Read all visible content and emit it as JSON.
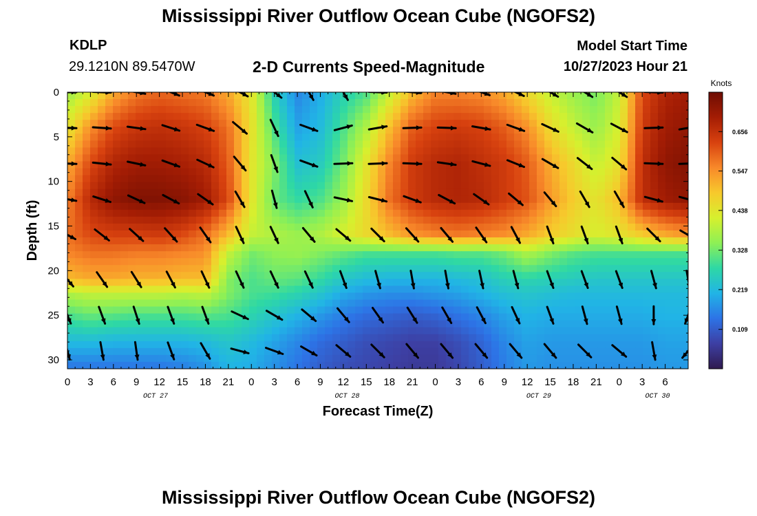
{
  "title": "Mississippi River Outflow Ocean Cube (NGOFS2)",
  "bottom_title": "Mississippi River Outflow Ocean Cube (NGOFS2)",
  "station": {
    "id": "KDLP",
    "coords": "29.1210N  89.5470W"
  },
  "model_start": {
    "label": "Model Start Time",
    "value": "10/27/2023 Hour 21"
  },
  "colors": {
    "ramp": [
      "#2f1a4f",
      "#3d3fa3",
      "#2d73e6",
      "#21b4e6",
      "#2ed8a5",
      "#8ef055",
      "#d6f02e",
      "#f7c92c",
      "#f8892a",
      "#d8420f",
      "#a41d04",
      "#6e0d02"
    ],
    "arrow": "#000000"
  },
  "chart_data": {
    "type": "heatmap",
    "title": "2-D Currents Speed-Magnitude",
    "xlabel": "Forecast Time(Z)",
    "ylabel": "Depth (ft)",
    "x_range_hours": [
      0,
      81
    ],
    "y_range": [
      0,
      31
    ],
    "y_inverted": true,
    "x_tick_labels": [
      "0",
      "3",
      "6",
      "9",
      "12",
      "15",
      "18",
      "21",
      "0",
      "3",
      "6",
      "9",
      "12",
      "15",
      "18",
      "21",
      "0",
      "3",
      "6",
      "9",
      "12",
      "15",
      "18",
      "21",
      "0",
      "3",
      "6"
    ],
    "x_tick_step_hours": 3,
    "y_ticks": [
      0,
      5,
      10,
      15,
      20,
      25,
      30
    ],
    "date_labels": [
      {
        "label": "OCT 27",
        "hour": 11.5
      },
      {
        "label": "OCT 28",
        "hour": 36.5
      },
      {
        "label": "OCT 29",
        "hour": 61.5
      },
      {
        "label": "OCT 30",
        "hour": 77
      }
    ],
    "colorbar": {
      "title": "Knots",
      "range": [
        0.0,
        0.765
      ],
      "ticks": [
        0.109,
        0.219,
        0.328,
        0.438,
        0.547,
        0.656
      ]
    },
    "speed_field": {
      "hours": [
        0,
        3,
        6,
        9,
        12,
        15,
        18,
        21,
        24,
        27,
        30,
        33,
        36,
        39,
        42,
        45,
        48,
        51,
        54,
        57,
        60,
        63,
        66,
        69,
        72,
        75,
        78,
        81
      ],
      "depths": [
        0,
        4,
        8,
        12,
        16,
        18,
        21,
        22.5,
        25,
        28,
        31
      ],
      "values": [
        [
          0.36,
          0.42,
          0.52,
          0.57,
          0.59,
          0.58,
          0.57,
          0.52,
          0.44,
          0.26,
          0.16,
          0.2,
          0.26,
          0.3,
          0.4,
          0.5,
          0.56,
          0.56,
          0.55,
          0.52,
          0.46,
          0.4,
          0.36,
          0.33,
          0.4,
          0.62,
          0.68,
          0.7
        ],
        [
          0.44,
          0.55,
          0.62,
          0.65,
          0.66,
          0.65,
          0.63,
          0.58,
          0.45,
          0.3,
          0.19,
          0.22,
          0.3,
          0.38,
          0.5,
          0.6,
          0.63,
          0.64,
          0.63,
          0.6,
          0.55,
          0.46,
          0.4,
          0.36,
          0.42,
          0.64,
          0.7,
          0.72
        ],
        [
          0.52,
          0.62,
          0.68,
          0.7,
          0.7,
          0.69,
          0.67,
          0.6,
          0.44,
          0.34,
          0.23,
          0.25,
          0.33,
          0.44,
          0.56,
          0.64,
          0.67,
          0.68,
          0.66,
          0.64,
          0.6,
          0.52,
          0.46,
          0.4,
          0.45,
          0.66,
          0.72,
          0.74
        ],
        [
          0.56,
          0.67,
          0.72,
          0.74,
          0.74,
          0.73,
          0.7,
          0.62,
          0.44,
          0.32,
          0.28,
          0.3,
          0.36,
          0.46,
          0.58,
          0.64,
          0.67,
          0.68,
          0.67,
          0.64,
          0.61,
          0.54,
          0.48,
          0.44,
          0.5,
          0.66,
          0.7,
          0.72
        ],
        [
          0.58,
          0.62,
          0.63,
          0.63,
          0.64,
          0.62,
          0.58,
          0.5,
          0.4,
          0.38,
          0.36,
          0.38,
          0.42,
          0.46,
          0.5,
          0.54,
          0.56,
          0.57,
          0.56,
          0.55,
          0.52,
          0.48,
          0.45,
          0.42,
          0.44,
          0.48,
          0.52,
          0.54
        ],
        [
          0.56,
          0.58,
          0.58,
          0.57,
          0.57,
          0.56,
          0.55,
          0.4,
          0.33,
          0.35,
          0.36,
          0.34,
          0.32,
          0.3,
          0.3,
          0.3,
          0.3,
          0.31,
          0.31,
          0.33,
          0.38,
          0.34,
          0.31,
          0.3,
          0.3,
          0.3,
          0.3,
          0.3
        ],
        [
          0.5,
          0.52,
          0.52,
          0.51,
          0.51,
          0.5,
          0.5,
          0.34,
          0.3,
          0.32,
          0.31,
          0.28,
          0.24,
          0.22,
          0.21,
          0.21,
          0.21,
          0.22,
          0.23,
          0.26,
          0.27,
          0.26,
          0.25,
          0.24,
          0.24,
          0.24,
          0.24,
          0.24
        ],
        [
          0.38,
          0.4,
          0.4,
          0.4,
          0.4,
          0.39,
          0.4,
          0.34,
          0.3,
          0.29,
          0.27,
          0.24,
          0.2,
          0.18,
          0.17,
          0.17,
          0.18,
          0.19,
          0.21,
          0.23,
          0.24,
          0.23,
          0.22,
          0.22,
          0.22,
          0.22,
          0.22,
          0.22
        ],
        [
          0.3,
          0.32,
          0.31,
          0.3,
          0.3,
          0.3,
          0.31,
          0.3,
          0.27,
          0.24,
          0.21,
          0.18,
          0.15,
          0.13,
          0.12,
          0.11,
          0.12,
          0.14,
          0.16,
          0.19,
          0.21,
          0.2,
          0.2,
          0.2,
          0.2,
          0.2,
          0.21,
          0.21
        ],
        [
          0.22,
          0.22,
          0.21,
          0.21,
          0.21,
          0.21,
          0.22,
          0.24,
          0.22,
          0.19,
          0.16,
          0.13,
          0.11,
          0.09,
          0.08,
          0.07,
          0.07,
          0.09,
          0.12,
          0.16,
          0.19,
          0.18,
          0.18,
          0.18,
          0.18,
          0.18,
          0.19,
          0.19
        ],
        [
          0.14,
          0.14,
          0.14,
          0.14,
          0.14,
          0.15,
          0.17,
          0.21,
          0.2,
          0.17,
          0.14,
          0.11,
          0.09,
          0.08,
          0.07,
          0.06,
          0.06,
          0.08,
          0.11,
          0.15,
          0.18,
          0.17,
          0.17,
          0.17,
          0.17,
          0.17,
          0.18,
          0.18
        ]
      ]
    },
    "vectors": {
      "hours": [
        0,
        4.5,
        9,
        13.5,
        18,
        22.5,
        27,
        31.5,
        36,
        40.5,
        45,
        49.5,
        54,
        58.5,
        63,
        67.5,
        72,
        76.5,
        81
      ],
      "depths": [
        0,
        4,
        8,
        12,
        16,
        21,
        25,
        29
      ],
      "directions_deg": [
        [
          90,
          92,
          100,
          112,
          112,
          118,
          128,
          150,
          150,
          92,
          95,
          100,
          110,
          115,
          120,
          122,
          122,
          92,
          92
        ],
        [
          92,
          94,
          98,
          108,
          110,
          130,
          155,
          110,
          75,
          80,
          88,
          92,
          100,
          110,
          115,
          120,
          118,
          88,
          80
        ],
        [
          92,
          96,
          102,
          110,
          115,
          140,
          160,
          110,
          88,
          88,
          92,
          98,
          105,
          112,
          120,
          128,
          130,
          92,
          88
        ],
        [
          100,
          108,
          115,
          118,
          125,
          150,
          165,
          155,
          102,
          104,
          110,
          118,
          125,
          130,
          140,
          150,
          150,
          105,
          105
        ],
        [
          118,
          128,
          132,
          138,
          145,
          155,
          155,
          140,
          130,
          135,
          138,
          140,
          145,
          152,
          160,
          160,
          160,
          135,
          120
        ],
        [
          140,
          145,
          148,
          152,
          155,
          155,
          155,
          155,
          160,
          165,
          170,
          170,
          168,
          165,
          160,
          160,
          160,
          165,
          170
        ],
        [
          158,
          160,
          162,
          160,
          160,
          115,
          120,
          130,
          140,
          145,
          148,
          150,
          152,
          155,
          160,
          165,
          165,
          180,
          200
        ],
        [
          165,
          170,
          172,
          160,
          150,
          105,
          110,
          120,
          130,
          135,
          140,
          140,
          140,
          140,
          140,
          135,
          130,
          170,
          220
        ]
      ]
    }
  }
}
